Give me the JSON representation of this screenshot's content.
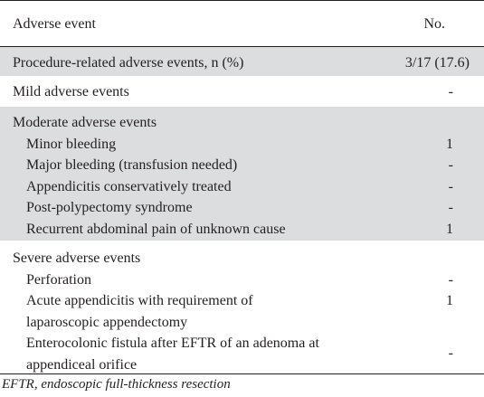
{
  "table": {
    "header": {
      "event": "Adverse event",
      "count": "No."
    },
    "procedure": {
      "label": "Procedure-related adverse events, n (%)",
      "value": "3/17 (17.6)"
    },
    "mild": {
      "label": "Mild adverse events",
      "value": "-"
    },
    "moderate": {
      "label": "Moderate adverse events",
      "items": [
        {
          "label": "Minor bleeding",
          "value": "1"
        },
        {
          "label": "Major bleeding (transfusion needed)",
          "value": "-"
        },
        {
          "label": "Appendicitis conservatively treated",
          "value": "-"
        },
        {
          "label": "Post-polypectomy syndrome",
          "value": "-"
        },
        {
          "label": "Recurrent abdominal pain of unknown cause",
          "value": "1"
        }
      ]
    },
    "severe": {
      "label": "Severe adverse events",
      "items": [
        {
          "label": "Perforation",
          "value": "-"
        },
        {
          "label": "Acute appendicitis with requirement of laparoscopic appendectomy",
          "value": "1"
        },
        {
          "label": "Enterocolonic fistula after EFTR of an adenoma at appendiceal orifice",
          "value": "-"
        }
      ]
    }
  },
  "footnote": "EFTR, endoscopic full-thickness resection",
  "colors": {
    "shade": "#dcdddf",
    "rule": "#231f20",
    "text": "#231f20"
  }
}
